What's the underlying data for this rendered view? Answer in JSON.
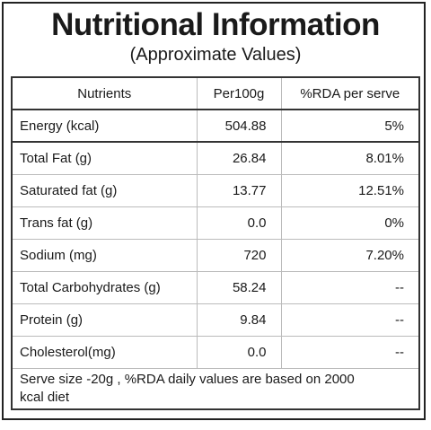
{
  "header": {
    "title": "Nutritional Information",
    "subtitle": "(Approximate Values)"
  },
  "table": {
    "columns": [
      "Nutrients",
      "Per100g",
      "%RDA per serve"
    ],
    "rows": [
      [
        "Energy (kcal)",
        "504.88",
        "5%"
      ],
      [
        "Total Fat (g)",
        "26.84",
        "8.01%"
      ],
      [
        "Saturated fat (g)",
        "13.77",
        "12.51%"
      ],
      [
        "Trans fat (g)",
        "0.0",
        "0%"
      ],
      [
        "Sodium (mg)",
        "720",
        "7.20%"
      ],
      [
        "Total Carbohydrates (g)",
        "58.24",
        "--"
      ],
      [
        "Protein (g)",
        "9.84",
        "--"
      ],
      [
        "Cholesterol(mg)",
        "0.0",
        "--"
      ]
    ],
    "footnote": "Serve size -20g , %RDA daily values are based on 2000 kcal diet"
  }
}
